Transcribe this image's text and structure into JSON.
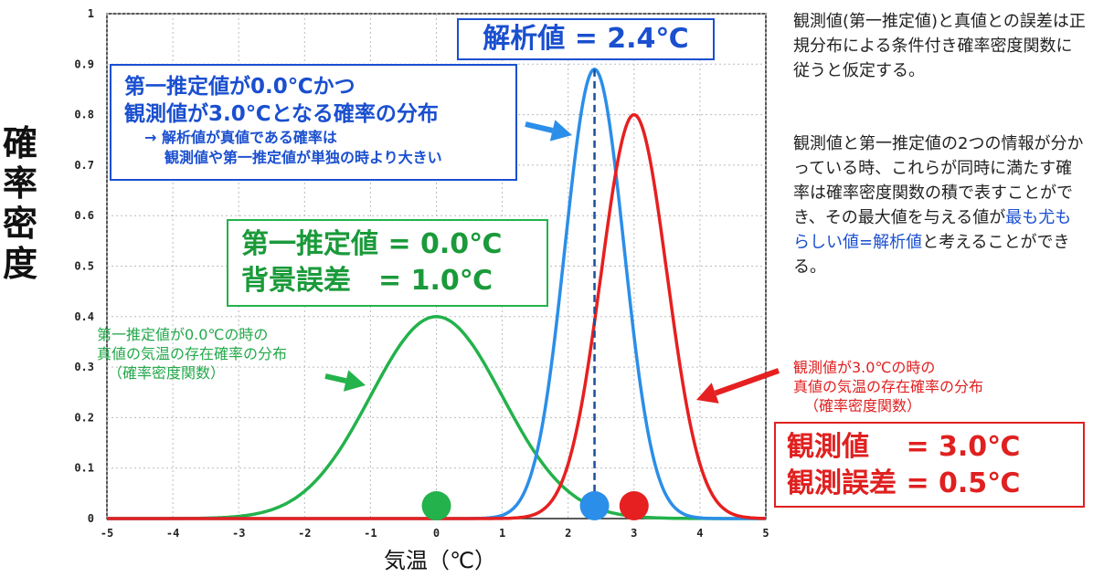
{
  "chart_data": {
    "type": "line",
    "title": "",
    "xlabel": "気温（℃）",
    "ylabel": "確率密度",
    "xlim": [
      -5,
      5
    ],
    "ylim": [
      0,
      1
    ],
    "x_ticks": [
      -5,
      -4,
      -3,
      -2,
      -1,
      0,
      1,
      2,
      3,
      4,
      5
    ],
    "y_ticks": [
      "0",
      "0.1",
      "0.2",
      "0.3",
      "0.4",
      "0.5",
      "0.6",
      "0.7",
      "0.8",
      "0.9",
      "1"
    ],
    "grid": true,
    "series": [
      {
        "name": "第一推定値",
        "color": "#23b24b",
        "distribution": "normal",
        "mean": 0.0,
        "sd": 1.0,
        "peak": 0.4,
        "marker_x": 0.0
      },
      {
        "name": "観測値",
        "color": "#e62020",
        "distribution": "normal",
        "mean": 3.0,
        "sd": 0.5,
        "peak": 0.8,
        "marker_x": 3.0
      },
      {
        "name": "解析値",
        "color": "#2b8ee8",
        "distribution": "normal",
        "mean": 2.4,
        "sd": 0.447,
        "peak": 0.89,
        "marker_x": 2.4
      }
    ],
    "analysis_line": {
      "x": 2.4,
      "y_top": 0.89,
      "style": "dashed",
      "color": "#1a4f9c"
    }
  },
  "labels": {
    "ylabel_chars": [
      "確",
      "率",
      "密",
      "度"
    ],
    "xlabel": "気温（℃）"
  },
  "boxes": {
    "analysis": "解析値 = 2.4℃",
    "joint": {
      "line1": "第一推定値が0.0℃かつ",
      "line2": "観測値が3.0℃となる確率の分布",
      "line3": "→ 解析値が真値である確率は",
      "line4": "観測値や第一推定値が単独の時より大きい"
    },
    "background": "第一推定値 = 0.0℃\n背景誤差　= 1.0℃",
    "observation": "観測値　 = 3.0℃\n観測誤差 = 0.5℃"
  },
  "notes": {
    "green": [
      "第一推定値が0.0℃の時の",
      "真値の気温の存在確率の分布",
      "（確率密度関数）"
    ],
    "red": [
      "観測値が3.0℃の時の",
      "真値の気温の存在確率の分布",
      "（確率密度関数）"
    ]
  },
  "right_text": {
    "para1": "観測値(第一推定値)と真値との誤差は正規分布による条件付き確率密度関数に従うと仮定する。",
    "para2_a": "観測値と第一推定値の2つの情報が分かっている時、これらが同時に満たす確率は確率密度関数の積で表すことができ、その最大値を与える値が",
    "para2_b": "最も尤もらしい値=解析値",
    "para2_c": "と考えることができる。"
  },
  "colors": {
    "green": "#23b24b",
    "red": "#e62020",
    "blue": "#2b8ee8",
    "navy": "#1a4fcf"
  }
}
